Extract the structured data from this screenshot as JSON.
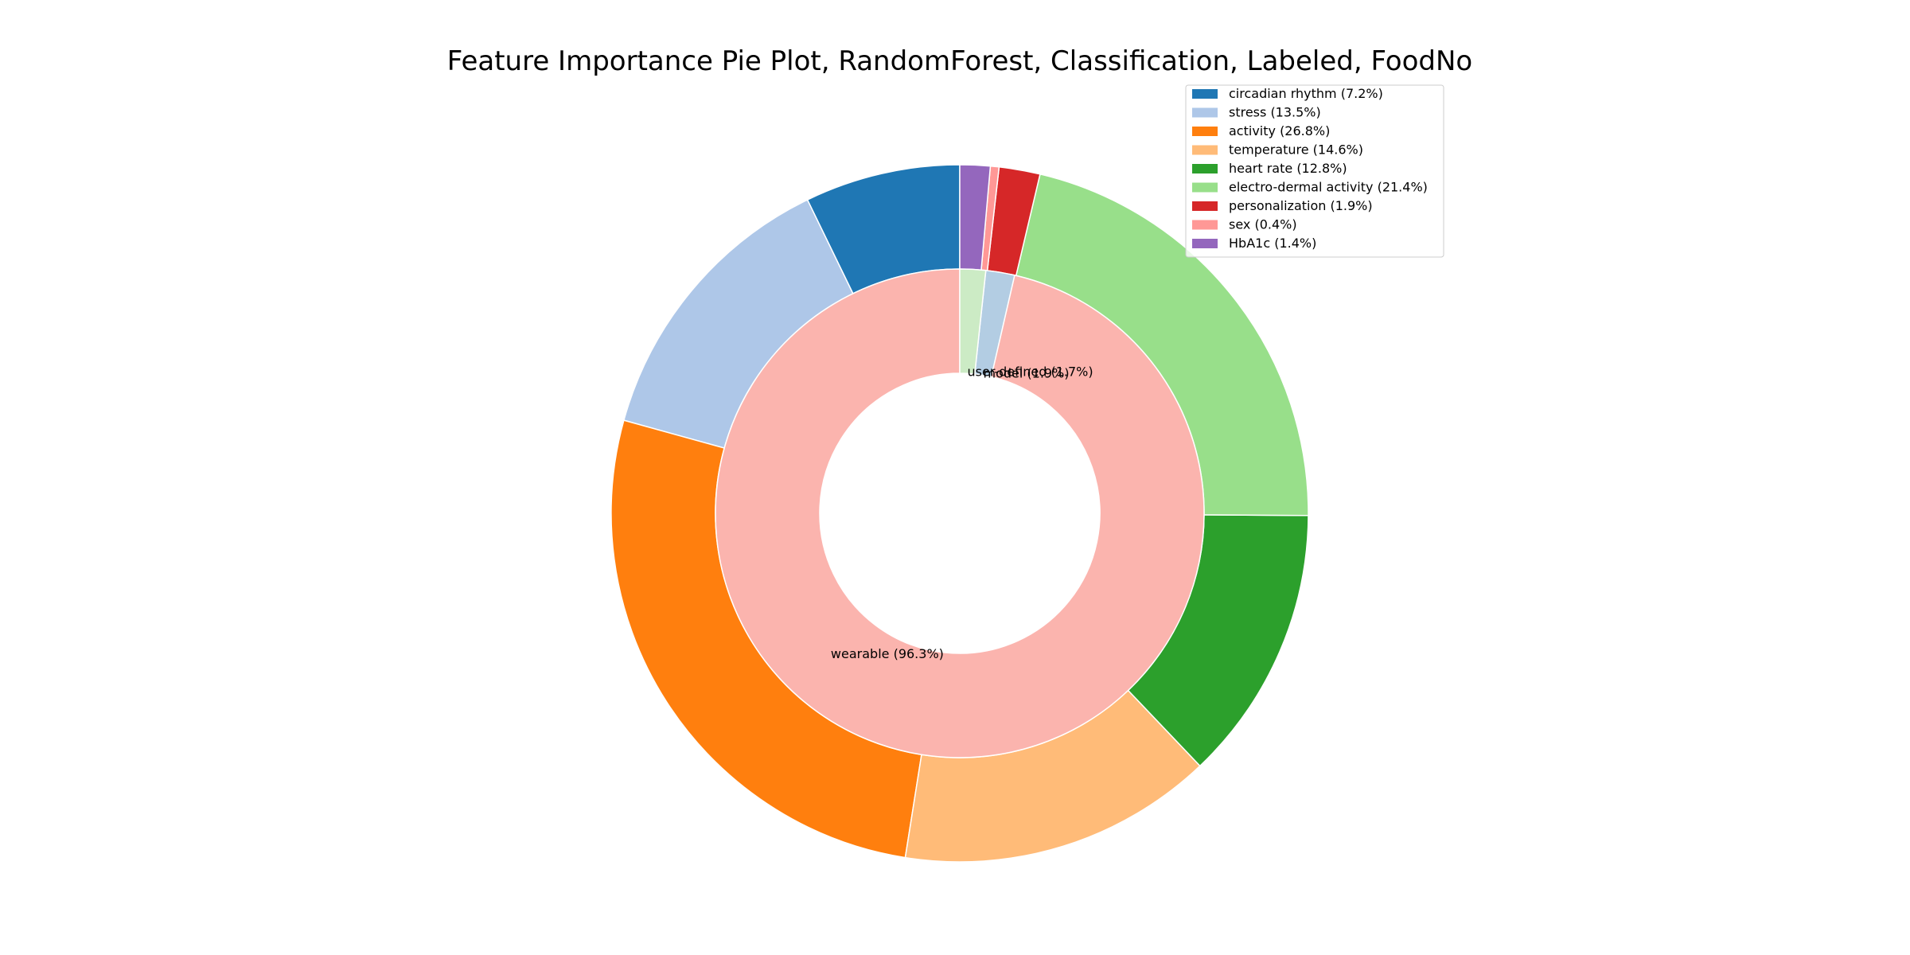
{
  "chart_data": {
    "type": "pie",
    "title": "Feature Importance Pie Plot, RandomForest, Classification, Labeled, FoodNo",
    "outer_ring": {
      "slices": [
        {
          "label": "circadian rhythm (7.2%)",
          "value": 7.2,
          "color": "#1f77b4"
        },
        {
          "label": "stress (13.5%)",
          "value": 13.5,
          "color": "#aec7e8"
        },
        {
          "label": "activity (26.8%)",
          "value": 26.8,
          "color": "#ff7f0e"
        },
        {
          "label": "temperature (14.6%)",
          "value": 14.6,
          "color": "#ffbb78"
        },
        {
          "label": "heart rate (12.8%)",
          "value": 12.8,
          "color": "#2ca02c"
        },
        {
          "label": "electro-dermal activity (21.4%)",
          "value": 21.4,
          "color": "#98df8a"
        },
        {
          "label": "personalization (1.9%)",
          "value": 1.9,
          "color": "#d62728"
        },
        {
          "label": "sex (0.4%)",
          "value": 0.4,
          "color": "#ff9896"
        },
        {
          "label": "HbA1c (1.4%)",
          "value": 1.4,
          "color": "#9467bd"
        }
      ]
    },
    "inner_ring": {
      "slices": [
        {
          "label": "wearable (96.3%)",
          "value": 96.3,
          "color": "#fbb4ae"
        },
        {
          "label": "model (1.9%)",
          "value": 1.9,
          "color": "#b3cde3"
        },
        {
          "label": "user-defined (1.7%)",
          "value": 1.7,
          "color": "#ccebc5"
        }
      ]
    },
    "start_angle_deg": 90,
    "direction": "counterclockwise",
    "legend_position": "top-right"
  }
}
